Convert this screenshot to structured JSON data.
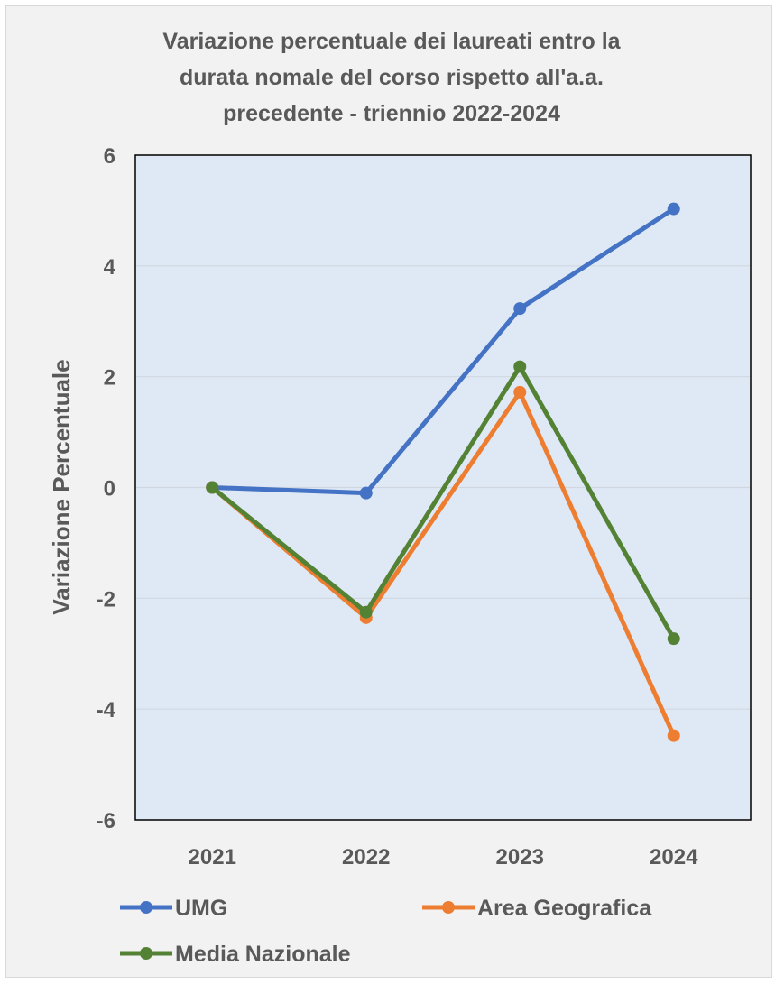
{
  "chart_data": {
    "type": "line",
    "title": "Variazione percentuale dei laureati entro la durata nomale del corso rispetto all'a.a. precedente - triennio 2022-2024",
    "title_lines": [
      "Variazione percentuale dei laureati entro la",
      "durata nomale del corso rispetto all'a.a.",
      "precedente - triennio 2022-2024"
    ],
    "xlabel": "",
    "ylabel": "Variazione Percentuale",
    "categories": [
      "2021",
      "2022",
      "2023",
      "2024"
    ],
    "ylim": [
      -6,
      6
    ],
    "yticks": [
      "-6",
      "-4",
      "-2",
      "0",
      "2",
      "4",
      "6"
    ],
    "grid": true,
    "plot_background": "#dfe9f5",
    "legend_placement": "bottom",
    "series": [
      {
        "name": "UMG",
        "color": "#4472c4",
        "values": [
          0,
          -0.1,
          3.23,
          5.03
        ]
      },
      {
        "name": "Area Geografica",
        "color": "#ed7d31",
        "values": [
          0,
          -2.35,
          1.72,
          -4.48
        ]
      },
      {
        "name": "Media Nazionale",
        "color": "#548235",
        "values": [
          0,
          -2.25,
          2.18,
          -2.73
        ]
      }
    ]
  }
}
